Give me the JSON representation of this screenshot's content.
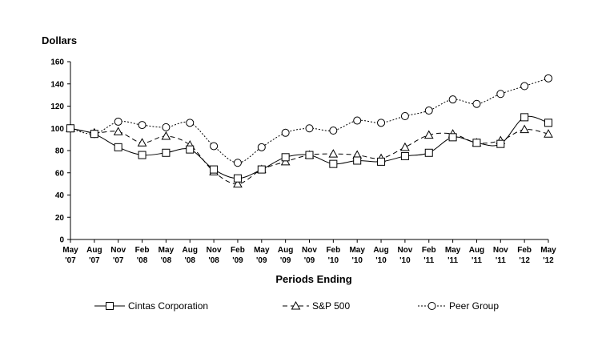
{
  "chart_data": {
    "type": "line",
    "ylabel": "Dollars",
    "xlabel": "Periods Ending",
    "ylim": [
      0,
      160
    ],
    "yticks": [
      0,
      20,
      40,
      60,
      80,
      100,
      120,
      140,
      160
    ],
    "categories": [
      [
        "May",
        "'07"
      ],
      [
        "Aug",
        "'07"
      ],
      [
        "Nov",
        "'07"
      ],
      [
        "Feb",
        "'08"
      ],
      [
        "May",
        "'08"
      ],
      [
        "Aug",
        "'08"
      ],
      [
        "Nov",
        "'08"
      ],
      [
        "Feb",
        "'09"
      ],
      [
        "May",
        "'09"
      ],
      [
        "Aug",
        "'09"
      ],
      [
        "Nov",
        "'09"
      ],
      [
        "Feb",
        "'10"
      ],
      [
        "May",
        "'10"
      ],
      [
        "Aug",
        "'10"
      ],
      [
        "Nov",
        "'10"
      ],
      [
        "Feb",
        "'11"
      ],
      [
        "May",
        "'11"
      ],
      [
        "Aug",
        "'11"
      ],
      [
        "Nov",
        "'11"
      ],
      [
        "Feb",
        "'12"
      ],
      [
        "May",
        "'12"
      ]
    ],
    "grid": false,
    "legend_position": "bottom",
    "series": [
      {
        "name": "Cintas Corporation",
        "marker": "square",
        "dash": "solid",
        "color": "#000000",
        "values": [
          100,
          95,
          83,
          76,
          78,
          81,
          63,
          55,
          63,
          74,
          76,
          68,
          71,
          70,
          75,
          78,
          92,
          87,
          86,
          110,
          105
        ]
      },
      {
        "name": "S&P 500",
        "marker": "triangle",
        "dash": "dashed",
        "color": "#000000",
        "values": [
          100,
          96,
          97,
          87,
          93,
          85,
          61,
          50,
          63,
          70,
          76,
          77,
          76,
          73,
          83,
          94,
          95,
          87,
          89,
          99,
          95
        ]
      },
      {
        "name": "Peer Group",
        "marker": "circle",
        "dash": "dotted",
        "color": "#000000",
        "values": [
          100,
          95,
          106,
          103,
          101,
          105,
          84,
          69,
          83,
          96,
          100,
          98,
          107,
          105,
          111,
          116,
          126,
          122,
          131,
          138,
          145
        ]
      }
    ]
  }
}
